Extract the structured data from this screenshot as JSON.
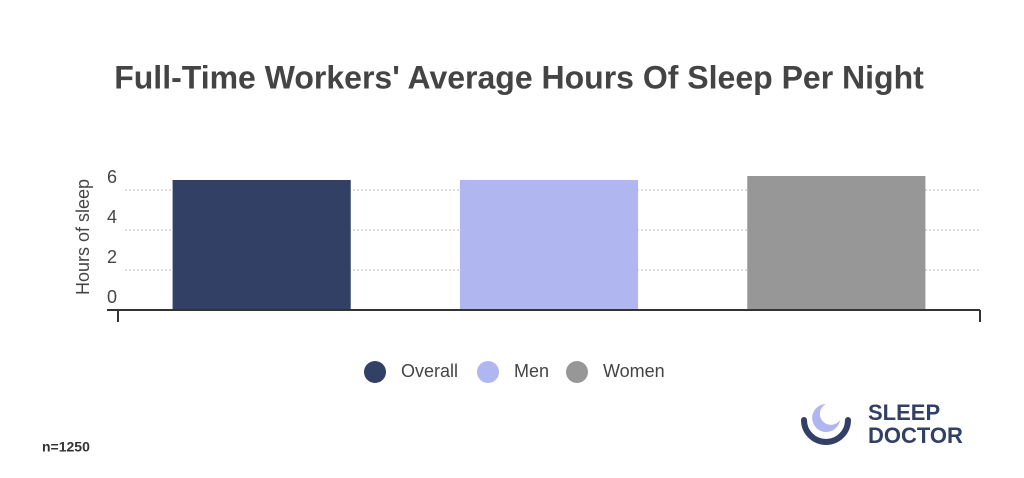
{
  "chart_data": {
    "type": "bar",
    "title": "Full-Time Workers' Average Hours Of Sleep Per Night",
    "y_label": "Hours of sleep",
    "categories": [
      null
    ],
    "series": [
      {
        "name": "Overall",
        "color": "#324066",
        "values": [
          6.5
        ]
      },
      {
        "name": "Men",
        "color": "#b0b6f0",
        "values": [
          6.5
        ]
      },
      {
        "name": "Women",
        "color": "#979797",
        "values": [
          6.7
        ]
      }
    ],
    "ylim": [
      0,
      7
    ],
    "yticks": [
      0,
      2,
      4,
      6
    ],
    "grid": true,
    "legend": "bottom",
    "note": "n=1250"
  },
  "logo": {
    "line1": "SLEEP",
    "line2": "DOCTOR"
  }
}
